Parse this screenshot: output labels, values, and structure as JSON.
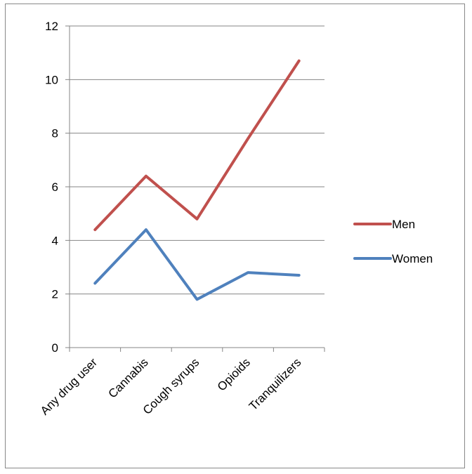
{
  "chart_data": {
    "type": "line",
    "title": "",
    "xlabel": "",
    "ylabel": "",
    "categories": [
      "Any drug user",
      "Cannabis",
      "Cough syrups",
      "Opioids",
      "Tranquilizers"
    ],
    "series": [
      {
        "name": "Men",
        "values": [
          4.4,
          6.4,
          4.8,
          7.8,
          10.7
        ],
        "color": "#C0504D"
      },
      {
        "name": "Women",
        "values": [
          2.4,
          4.4,
          1.8,
          2.8,
          2.7
        ],
        "color": "#4F81BD"
      }
    ],
    "ylim": [
      0,
      12
    ],
    "yticks": [
      0,
      2,
      4,
      6,
      8,
      10,
      12
    ],
    "grid": true,
    "legend_position": "right"
  }
}
